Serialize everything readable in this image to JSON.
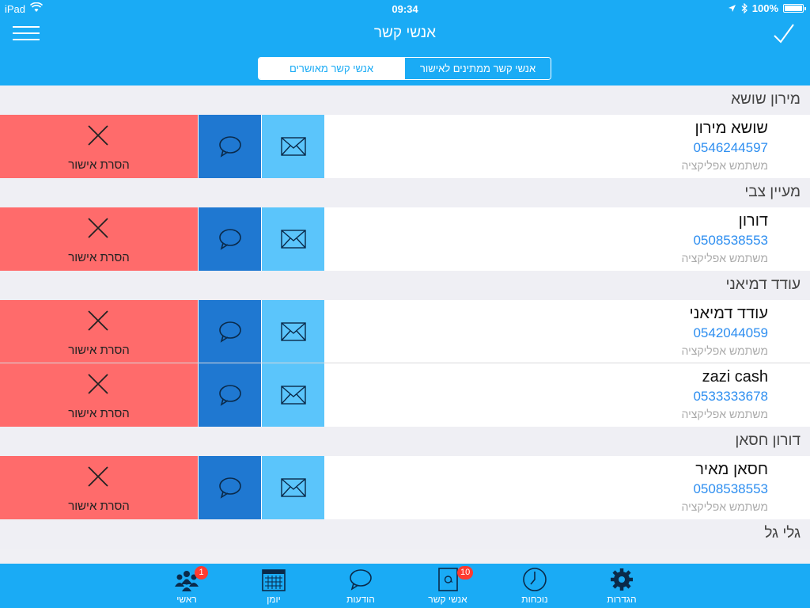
{
  "status_bar": {
    "device": "iPad",
    "time": "09:34",
    "battery": "100%"
  },
  "header": {
    "title": "אנשי קשר",
    "segments": [
      {
        "label": "אנשי קשר מאושרים",
        "selected": true
      },
      {
        "label": "אנשי קשר ממתינים לאישור",
        "selected": false
      }
    ]
  },
  "colors": {
    "accent": "#1aabf5",
    "remove": "#ff6b6b",
    "chat": "#1f78d1",
    "mail": "#5bc5fb",
    "phone": "#2d8ef0"
  },
  "actions": {
    "remove_label": "הסרת אישור"
  },
  "sections": [
    {
      "title": "מירון שושא",
      "rows": [
        {
          "name": "שושא מירון",
          "phone": "0546244597",
          "note": "משתמש אפליקציה"
        }
      ]
    },
    {
      "title": "מעיין צבי",
      "rows": [
        {
          "name": "דורון",
          "phone": "0508538553",
          "note": "משתמש אפליקציה"
        }
      ]
    },
    {
      "title": "עודד דמיאני",
      "rows": [
        {
          "name": "עודד דמיאני",
          "phone": "0542044059",
          "note": "משתמש אפליקציה"
        },
        {
          "name": "zazi cash",
          "phone": "0533333678",
          "note": "משתמש אפליקציה"
        }
      ]
    },
    {
      "title": "דורון חסאן",
      "rows": [
        {
          "name": "חסאן מאיר",
          "phone": "0508538553",
          "note": "משתמש אפליקציה"
        }
      ]
    },
    {
      "title": "גלי גל",
      "rows": []
    }
  ],
  "tabs": [
    {
      "label": "ראשי",
      "icon": "people-icon",
      "badge": "1"
    },
    {
      "label": "יומן",
      "icon": "calendar-icon",
      "badge": ""
    },
    {
      "label": "הודעות",
      "icon": "chat-bubble-icon",
      "badge": ""
    },
    {
      "label": "אנשי קשר",
      "icon": "contacts-book-icon",
      "badge": "10"
    },
    {
      "label": "נוכחות",
      "icon": "clock-icon",
      "badge": ""
    },
    {
      "label": "הגדרות",
      "icon": "gear-icon",
      "badge": ""
    }
  ]
}
